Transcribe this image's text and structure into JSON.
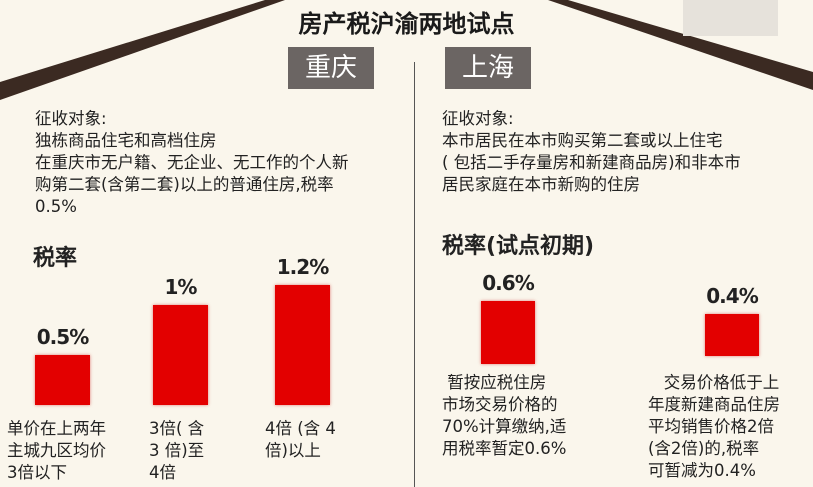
{
  "title": "房产税沪渝两地试点",
  "colors": {
    "bar": "#e30000",
    "city_label_bg": "#6b6563",
    "roof": "#3b2a22",
    "background": "#faf6ec"
  },
  "chongqing": {
    "city": "重庆",
    "subject_lines": [
      "征收对象:",
      "独栋商品住宅和高档住房",
      "在重庆市无户籍、无企业、无工作的个人新",
      "购第二套(含第二套)以上的普通住房,税率",
      "0.5%"
    ],
    "rate_heading": "税率"
  },
  "shanghai": {
    "city": "上海",
    "subject_lines": [
      "征收对象:",
      "本市居民在本市购买第二套或以上住宅",
      "( 包括二手存量房和新建商品房)和非本市",
      "居民家庭在本市新购的住房"
    ],
    "rate_heading": "税率(试点初期)"
  },
  "chart_data": [
    {
      "type": "bar",
      "title": "税率",
      "categories": [
        "单价在上两年\n主城九区均价\n3倍以下",
        "3倍( 含\n3 倍)至\n4倍",
        "4倍 (含 4\n倍)以上"
      ],
      "values": [
        0.5,
        1,
        1.2
      ],
      "labels": [
        "0.5%",
        "1%",
        "1.2%"
      ],
      "unit": "%"
    },
    {
      "type": "bar",
      "title": "税率(试点初期)",
      "categories": [
        " 暂按应税住房\n市场交易价格的\n70%计算缴纳,适\n用税率暂定0.6%",
        "   交易价格低于上\n年度新建商品住房\n平均销售价格2倍\n(含2倍)的,税率\n可暂减为0.4%"
      ],
      "values": [
        0.6,
        0.4
      ],
      "labels": [
        "0.6%",
        "0.4%"
      ],
      "unit": "%"
    }
  ]
}
